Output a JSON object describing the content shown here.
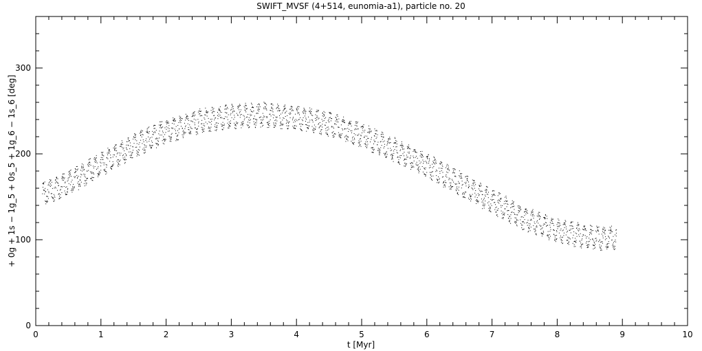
{
  "chart_data": {
    "type": "scatter",
    "title": "SWIFT_MVSF (4+514, eunomia-a1), particle no. 20",
    "xlabel": "t [Myr]",
    "ylabel": "+ 0g + 1s − 1g_5 + 0s_5 + 1g_6 − 1s_6 [deg]",
    "xlim": [
      0,
      10
    ],
    "ylim": [
      0,
      360
    ],
    "x_ticks": [
      "0",
      "1",
      "2",
      "3",
      "4",
      "5",
      "6",
      "7",
      "8",
      "9",
      "10"
    ],
    "y_ticks": [
      "0",
      "100",
      "200",
      "300"
    ],
    "grid": false,
    "marker_color": "#000000",
    "series": [
      {
        "x_start": 0.1,
        "x_end": 8.9,
        "x_step": 0.01,
        "oscillation_period": 0.1,
        "oscillation_amplitude": 12,
        "trend": [
          {
            "x": 0.1,
            "y": 153
          },
          {
            "x": 0.5,
            "y": 167
          },
          {
            "x": 1.0,
            "y": 188
          },
          {
            "x": 1.5,
            "y": 210
          },
          {
            "x": 2.0,
            "y": 227
          },
          {
            "x": 2.5,
            "y": 238
          },
          {
            "x": 3.0,
            "y": 244
          },
          {
            "x": 3.5,
            "y": 246
          },
          {
            "x": 4.0,
            "y": 242
          },
          {
            "x": 4.5,
            "y": 235
          },
          {
            "x": 5.0,
            "y": 222
          },
          {
            "x": 5.5,
            "y": 205
          },
          {
            "x": 6.0,
            "y": 187
          },
          {
            "x": 6.5,
            "y": 166
          },
          {
            "x": 7.0,
            "y": 145
          },
          {
            "x": 7.5,
            "y": 125
          },
          {
            "x": 8.0,
            "y": 111
          },
          {
            "x": 8.5,
            "y": 103
          },
          {
            "x": 8.9,
            "y": 102
          }
        ]
      }
    ]
  }
}
